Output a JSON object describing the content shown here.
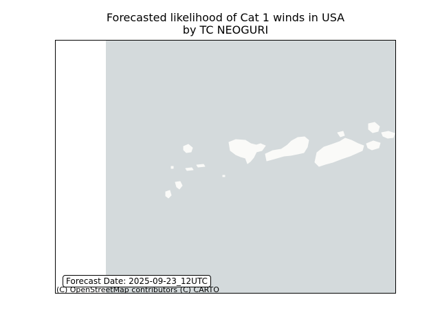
{
  "title": {
    "line1": "Forecasted likelihood of Cat 1 winds in USA",
    "line2": "by TC NEOGURI"
  },
  "map": {
    "ocean_color": "#d4dadc",
    "land_color": "#fafaf8",
    "no_data_color": "#ffffff",
    "frame_color": "#000000"
  },
  "forecast_date_label": "Forecast Date: 2025-09-23_12UTC",
  "attribution": "(C) OpenStreetMap contributors (C) CARTO"
}
